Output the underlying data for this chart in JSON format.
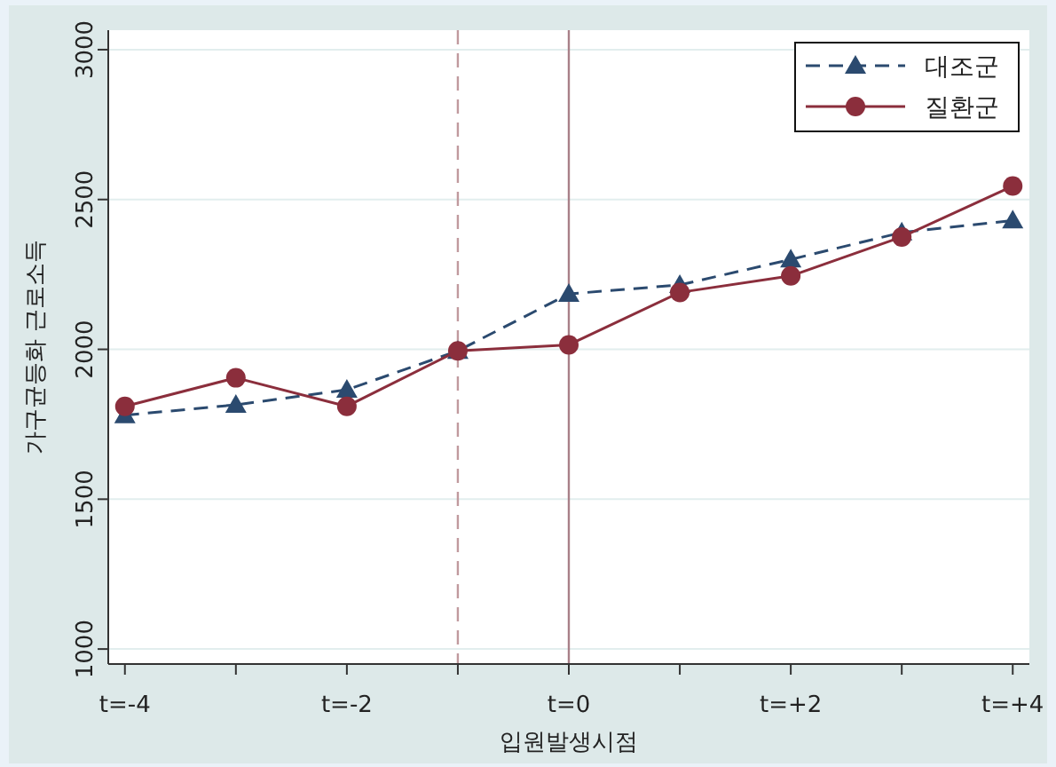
{
  "chart_data": {
    "type": "line",
    "xlabel": "입원발생시점",
    "ylabel": "가구균등화 근로소득",
    "x": [
      -4,
      -3,
      -2,
      -1,
      0,
      1,
      2,
      3,
      4
    ],
    "series": [
      {
        "name": "대조군",
        "color": "#2b4a6f",
        "marker": "triangle",
        "line_style": "dashed",
        "values": [
          1780,
          1815,
          1865,
          1995,
          2185,
          2215,
          2300,
          2390,
          2430
        ]
      },
      {
        "name": "질환군",
        "color": "#8b2e3c",
        "marker": "circle",
        "line_style": "solid",
        "values": [
          1810,
          1905,
          1810,
          1995,
          2015,
          2190,
          2245,
          2375,
          2545
        ]
      }
    ],
    "xlim": [
      -4.15,
      4.15
    ],
    "xticks": [
      {
        "value": -4,
        "label": "t=-4"
      },
      {
        "value": -3,
        "label": null
      },
      {
        "value": -2,
        "label": "t=-2"
      },
      {
        "value": -1,
        "label": null
      },
      {
        "value": 0,
        "label": "t=0"
      },
      {
        "value": 1,
        "label": null
      },
      {
        "value": 2,
        "label": "t=+2"
      },
      {
        "value": 3,
        "label": null
      },
      {
        "value": 4,
        "label": "t=+4"
      }
    ],
    "ylim": [
      950,
      3065
    ],
    "yticks": [
      1000,
      1500,
      2000,
      2500,
      3000
    ],
    "ref_lines": [
      {
        "axis": "x",
        "value": -1,
        "color": "#c09a9e",
        "line_style": "dashed"
      },
      {
        "axis": "x",
        "value": 0,
        "color": "#a88088",
        "line_style": "solid"
      }
    ],
    "grid": "y",
    "legend": "top right"
  }
}
